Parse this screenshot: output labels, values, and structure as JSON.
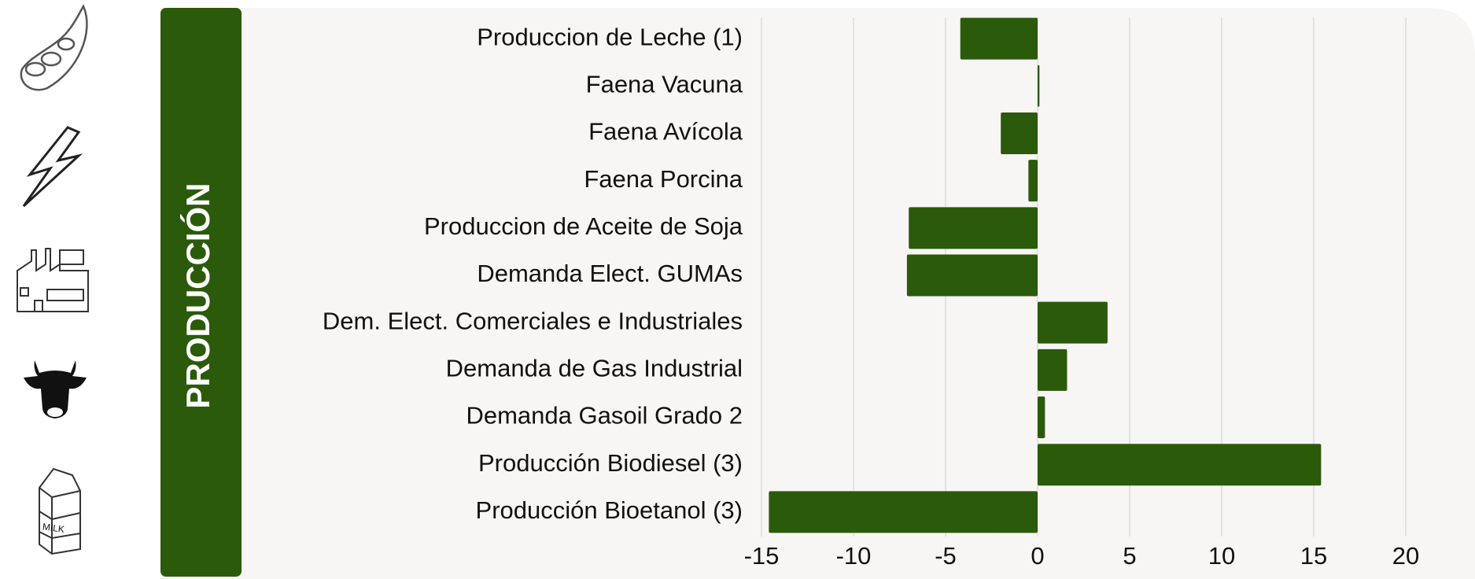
{
  "chart_data": {
    "type": "hbar",
    "title": "PRODUCCIÓN",
    "categories": [
      "Produccion de Leche (1)",
      "Faena Vacuna",
      "Faena Avícola",
      "Faena Porcina",
      "Produccion de Aceite de Soja",
      "Demanda Elect. GUMAs",
      "Dem. Elect. Comerciales e Industriales",
      "Demanda de Gas Industrial",
      "Demanda Gasoil Grado 2",
      "Producción Biodiesel (3)",
      "Producción Bioetanol (3)"
    ],
    "values": [
      -4.2,
      0.1,
      -2.0,
      -0.5,
      -7.0,
      -7.1,
      3.8,
      1.6,
      0.4,
      15.4,
      -14.6
    ],
    "color": "#2b5a0b",
    "xlim": [
      -15,
      20
    ],
    "xticks": [
      -15,
      -10,
      -5,
      0,
      5,
      10,
      15,
      20
    ],
    "grid": true
  }
}
